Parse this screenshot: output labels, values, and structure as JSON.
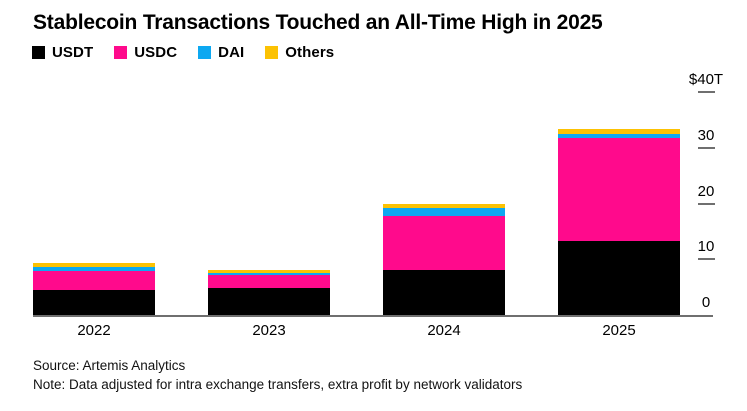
{
  "header": {
    "title": "Stablecoin Transactions Touched an All-Time High in 2025"
  },
  "source": {
    "line1": "Source: Artemis Analytics",
    "line2": "Note: Data adjusted for intra exchange transfers, extra profit by network validators"
  },
  "chart_data": {
    "type": "bar",
    "stacked": true,
    "title": "Stablecoin Transactions Touched an All-Time High in 2025",
    "categories": [
      "2022",
      "2023",
      "2024",
      "2025"
    ],
    "series": [
      {
        "name": "USDT",
        "color": "#000000",
        "values": [
          4.4,
          4.9,
          8.0,
          13.3
        ]
      },
      {
        "name": "USDC",
        "color": "#ff0a8c",
        "values": [
          3.5,
          2.2,
          9.7,
          18.4
        ]
      },
      {
        "name": "DAI",
        "color": "#0da8f1",
        "values": [
          0.7,
          0.5,
          1.5,
          0.8
        ]
      },
      {
        "name": "Others",
        "color": "#fcc203",
        "values": [
          0.8,
          0.5,
          0.7,
          0.8
        ]
      }
    ],
    "totals": [
      9.4,
      8.1,
      19.9,
      33.3
    ],
    "unit": "trillions of US dollars",
    "xlabel": "",
    "ylabel": "",
    "ylim": [
      0,
      40
    ],
    "grid": false,
    "legend_position": "top-left",
    "y_axis": {
      "side": "right",
      "ticks": [
        {
          "value": 40,
          "label": "$40T"
        },
        {
          "value": 30,
          "label": "30"
        },
        {
          "value": 20,
          "label": "20"
        },
        {
          "value": 10,
          "label": "10"
        },
        {
          "value": 0,
          "label": "0"
        }
      ]
    }
  }
}
